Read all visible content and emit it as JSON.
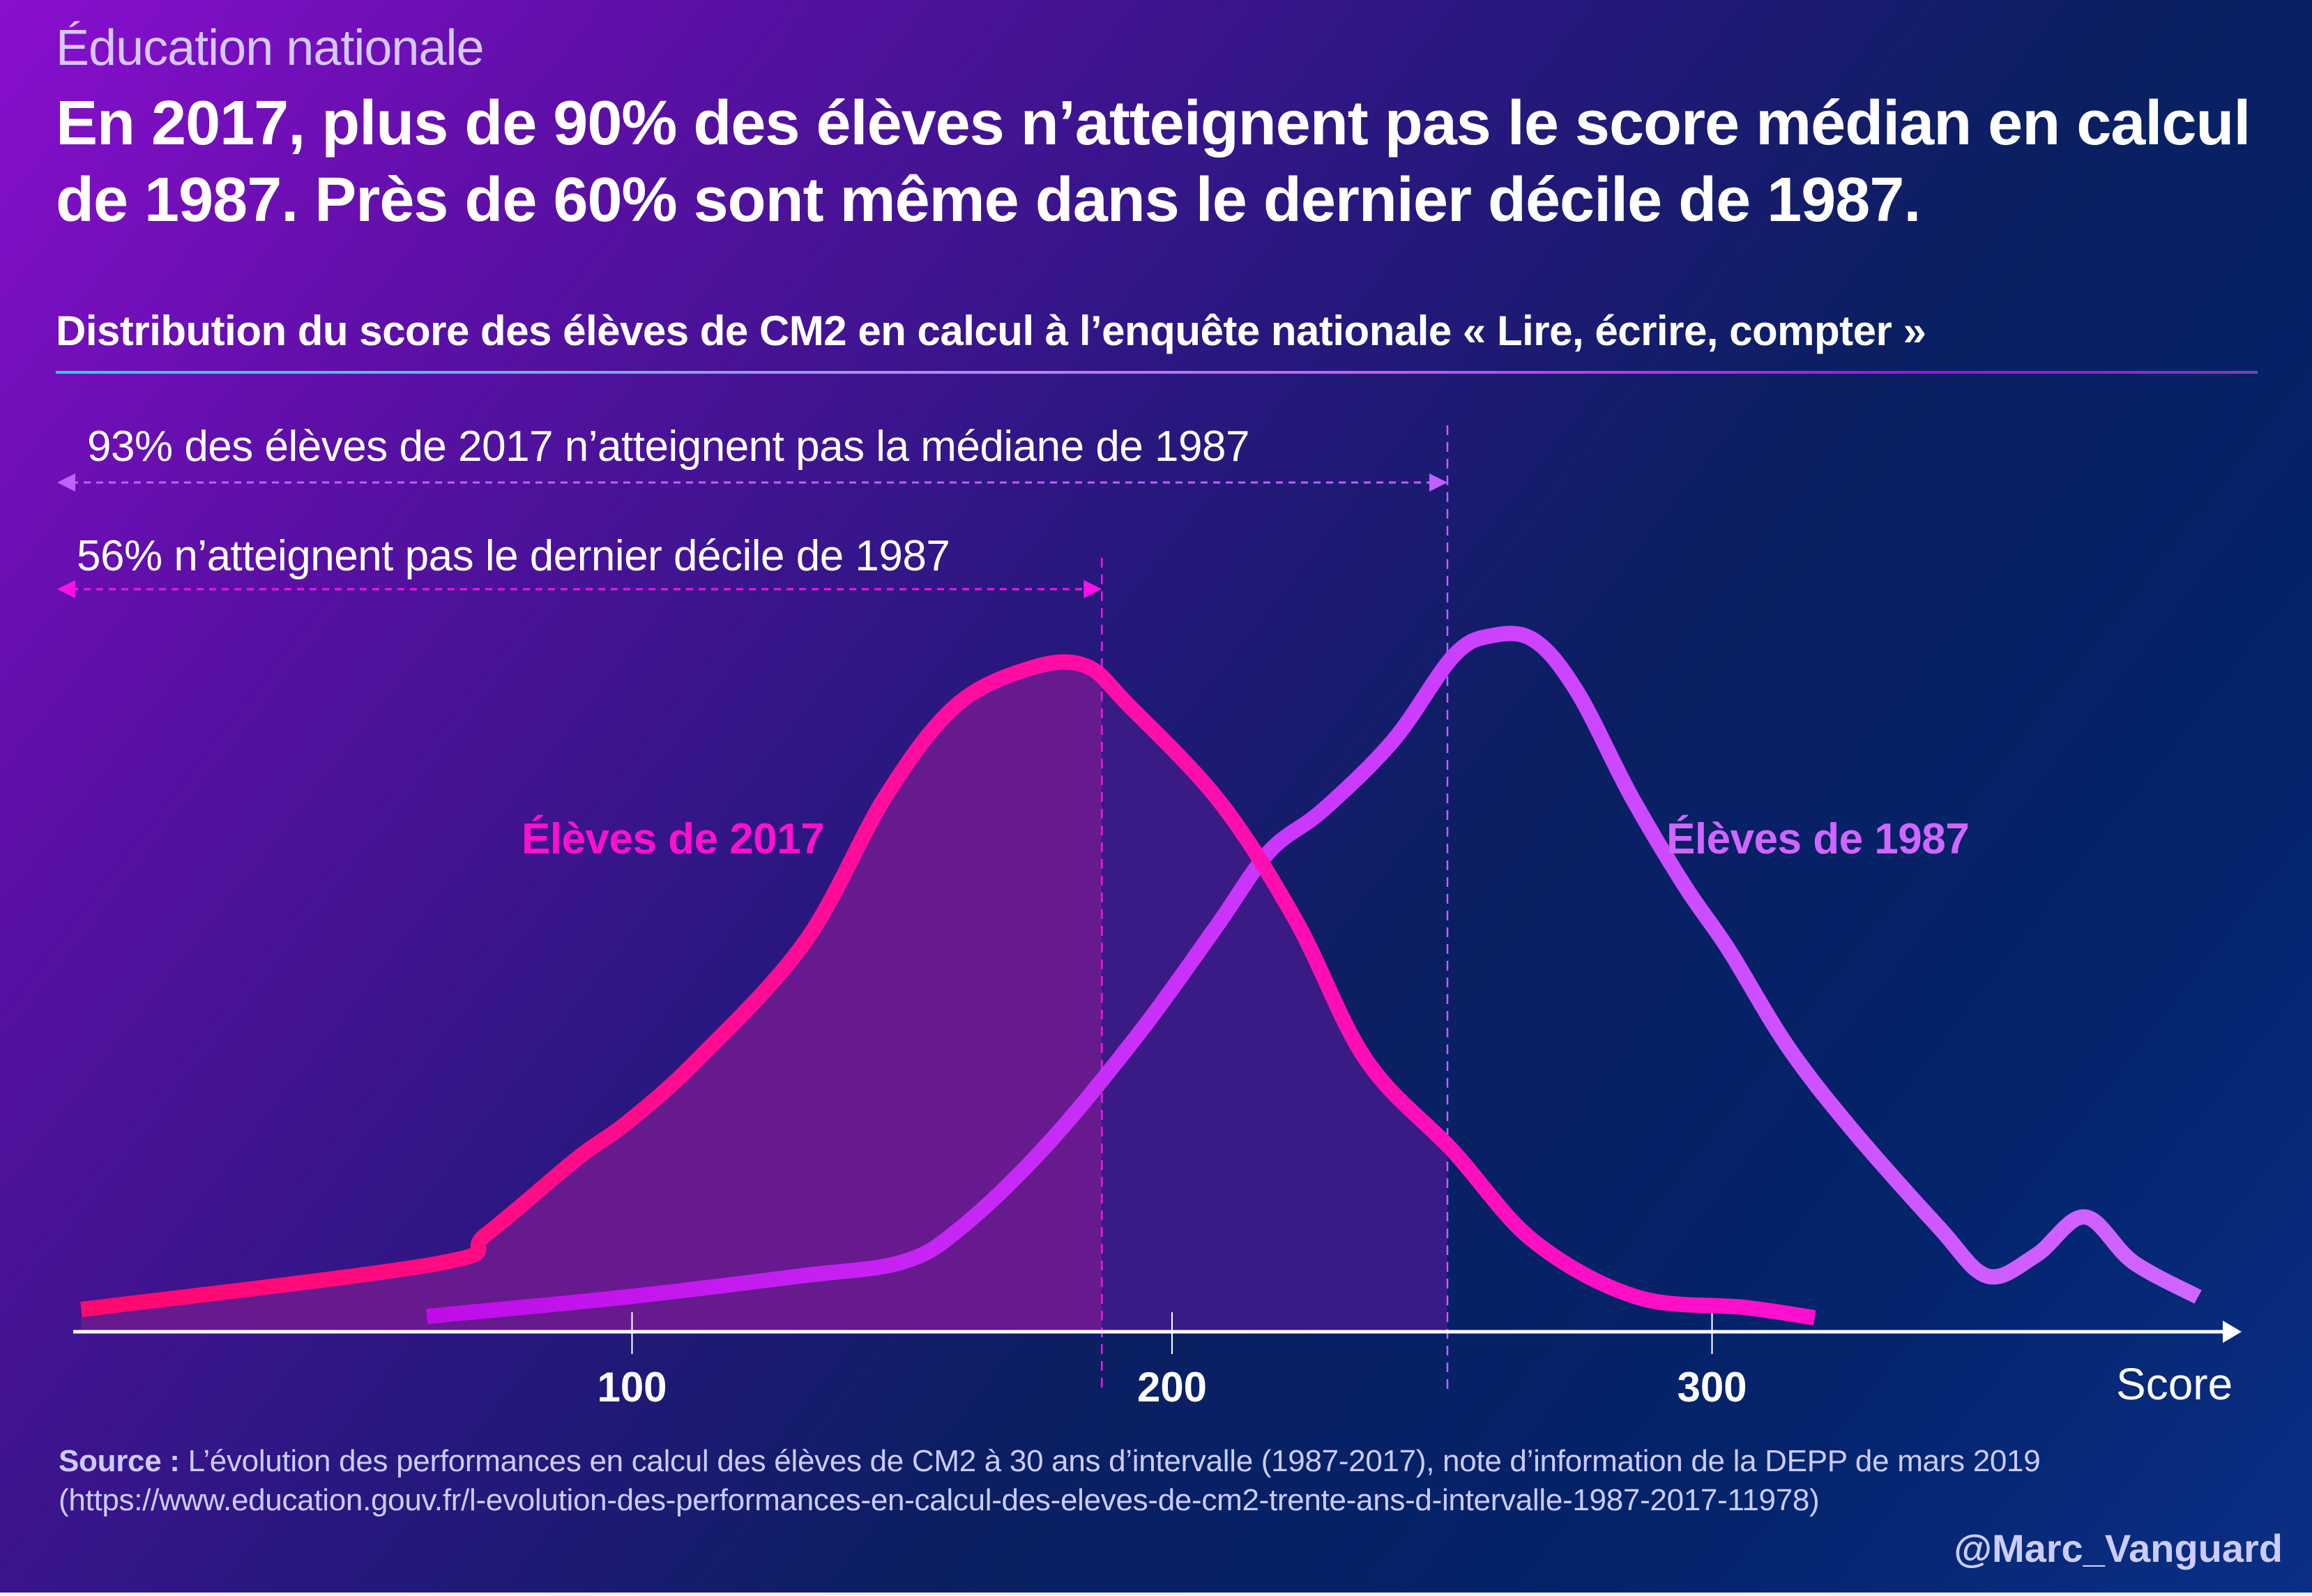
{
  "header": {
    "kicker": "Éducation nationale",
    "headline": "En 2017, plus de 90% des élèves n’atteignent pas le score médian en calcul de 1987. Près de 60% sont même dans le dernier décile de 1987.",
    "subtitle": "Distribution du score des élèves de CM2 en calcul à l’enquête nationale « Lire, écrire, compter »"
  },
  "footer": {
    "source_label": "Source :",
    "source_text": " L’évolution des performances en calcul des élèves de CM2 à 30 ans d’intervalle (1987-2017), note d’information de la DEPP de mars 2019 (https://www.education.gouv.fr/l-evolution-des-performances-en-calcul-des-eleves-de-cm2-trente-ans-d-intervalle-1987-2017-11978)",
    "handle": "@Marc_Vanguard"
  },
  "colors": {
    "series_2017": "#ff10d0",
    "series_2017_start": "#ff0a6e",
    "series_1987": "#d066ff",
    "series_1987_start": "#c00ce8",
    "fill_2017_decile": "#661a8e",
    "fill_2017_median": "#3a1a84",
    "axis": "#ffffff",
    "marker_median": "#c060ff",
    "marker_decile": "#ff10e8"
  },
  "chart_data": {
    "type": "line",
    "title": "Distribution du score des élèves de CM2 en calcul à l’enquête nationale « Lire, écrire, compter »",
    "xlabel": "Score",
    "ylabel": "",
    "xlim": [
      -3,
      395
    ],
    "ylim": [
      0,
      100
    ],
    "x_ticks": [
      100,
      200,
      300
    ],
    "y_axis_shown": false,
    "grid": false,
    "legend": "inline labels",
    "series": [
      {
        "name": "Élèves de 2017",
        "x": [
          -2,
          64,
          73,
          90,
          99,
          112,
          132,
          147,
          160,
          174,
          184,
          192,
          209,
          223,
          236,
          252,
          267,
          286,
          306,
          319
        ],
        "y": [
          3.2,
          9.8,
          14,
          25,
          30,
          39,
          56,
          77,
          90,
          95.4,
          95.7,
          90,
          76,
          59,
          39,
          26,
          13,
          5,
          3.5,
          2
        ]
      },
      {
        "name": "Élèves de 1987",
        "x": [
          62,
          99,
          131,
          150,
          161,
          177,
          194,
          208,
          218,
          228,
          241,
          252,
          259,
          267,
          275,
          285,
          295,
          303,
          314,
          326,
          342,
          351,
          360,
          369,
          378,
          390
        ],
        "y": [
          2.2,
          5,
          8,
          10,
          15,
          27,
          43,
          58,
          69,
          75,
          85,
          97,
          100,
          99.4,
          92,
          77,
          64,
          55,
          41,
          29,
          15,
          8,
          11,
          16.5,
          10,
          5
        ]
      }
    ],
    "reference_lines": [
      {
        "name": "Dernier décile de 1987",
        "x": 187
      },
      {
        "name": "Médiane de 1987",
        "x": 251
      }
    ],
    "annotations": [
      {
        "text": "93% des élèves de 2017 n’atteignent pas la médiane de 1987",
        "from_x": -3,
        "to_x": 251
      },
      {
        "text": "56% n’atteignent pas le dernier décile de 1987",
        "from_x": -3,
        "to_x": 187
      }
    ],
    "shaded_regions": [
      {
        "series": "Élèves de 2017",
        "from_x": -2,
        "to_x": 187,
        "meaning": "below 1987 last decile"
      },
      {
        "series": "Élèves de 2017",
        "from_x": 187,
        "to_x": 251,
        "meaning": "below 1987 median"
      }
    ]
  }
}
